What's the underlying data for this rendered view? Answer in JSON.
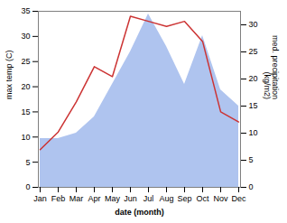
{
  "chart_data": {
    "type": "line",
    "categories": [
      "Jan",
      "Feb",
      "Mar",
      "Apr",
      "May",
      "Jun",
      "Jul",
      "Aug",
      "Sep",
      "Oct",
      "Nov",
      "Dec"
    ],
    "xlabel": "date (month)",
    "ylabel": "max temp (C)",
    "y2label": "med. precipitation\n(kg/m2)",
    "ylim": [
      0,
      35
    ],
    "yticks": [
      0,
      5,
      10,
      15,
      20,
      25,
      30,
      35
    ],
    "y2lim": [
      0,
      32.5
    ],
    "y2ticks": [
      0,
      5,
      10,
      15,
      20,
      25,
      30
    ],
    "grid": false,
    "series": [
      {
        "type": "area",
        "axis": "y2",
        "color": "#afc4ef",
        "values": [
          9,
          9,
          10,
          13,
          19,
          25,
          32,
          26,
          19,
          28,
          18,
          15
        ]
      },
      {
        "type": "line",
        "color": "#cc3333",
        "values": [
          7.5,
          11.0,
          17.0,
          24.0,
          22.0,
          34.0,
          33.0,
          32.0,
          33.0,
          29.0,
          15.0,
          13.0
        ]
      }
    ]
  }
}
